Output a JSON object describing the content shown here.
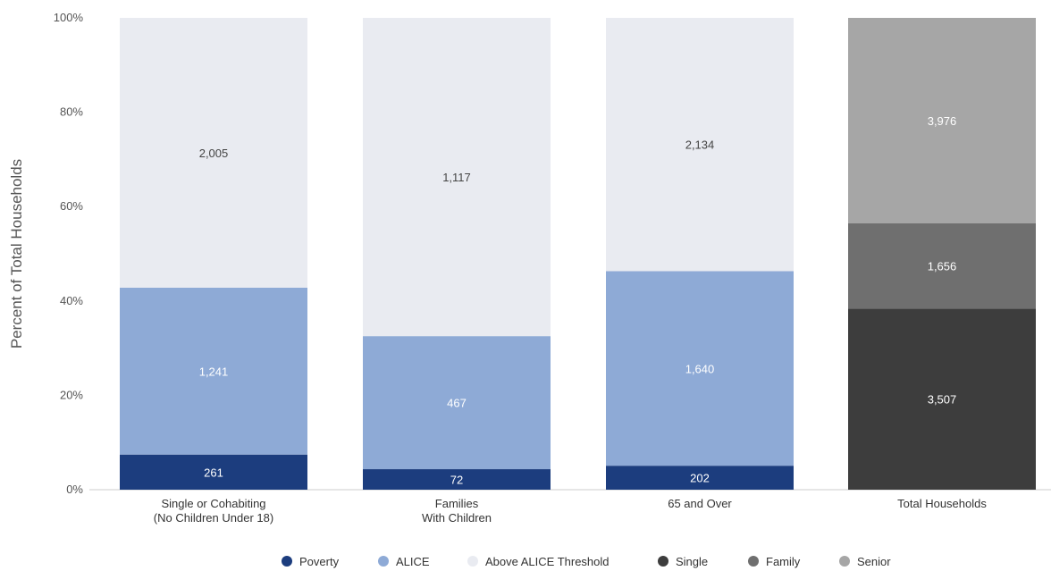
{
  "chart_data": {
    "type": "bar",
    "stacked": true,
    "ylabel": "Percent of Total Households",
    "yticks": [
      "0%",
      "20%",
      "40%",
      "60%",
      "80%",
      "100%"
    ],
    "ylim": [
      0,
      100
    ],
    "grid": false,
    "legend_position": "bottom",
    "categories": [
      [
        "Single or Cohabiting",
        "(No Children Under 18)"
      ],
      [
        "Families",
        "With Children"
      ],
      [
        "65 and Over"
      ],
      [
        "Total Households"
      ]
    ],
    "bars": [
      {
        "segments": [
          {
            "series": "Poverty",
            "value": 261
          },
          {
            "series": "ALICE",
            "value": 1241
          },
          {
            "series": "Above ALICE Threshold",
            "value": 2005
          }
        ]
      },
      {
        "segments": [
          {
            "series": "Poverty",
            "value": 72
          },
          {
            "series": "ALICE",
            "value": 467
          },
          {
            "series": "Above ALICE Threshold",
            "value": 1117
          }
        ]
      },
      {
        "segments": [
          {
            "series": "Poverty",
            "value": 202
          },
          {
            "series": "ALICE",
            "value": 1640
          },
          {
            "series": "Above ALICE Threshold",
            "value": 2134
          }
        ]
      },
      {
        "segments": [
          {
            "series": "Single",
            "value": 3507
          },
          {
            "series": "Family",
            "value": 1656
          },
          {
            "series": "Senior",
            "value": 3976
          }
        ]
      }
    ],
    "series": [
      {
        "name": "Poverty",
        "color": "#1c3d7e",
        "label_color": "#ffffff"
      },
      {
        "name": "ALICE",
        "color": "#8eaad6",
        "label_color": "#ffffff"
      },
      {
        "name": "Above ALICE Threshold",
        "color": "#e9ebf1",
        "label_color": "#444444"
      },
      {
        "name": "Single",
        "color": "#3d3d3d",
        "label_color": "#ffffff"
      },
      {
        "name": "Family",
        "color": "#6f6f6f",
        "label_color": "#ffffff"
      },
      {
        "name": "Senior",
        "color": "#a6a6a6",
        "label_color": "#ffffff"
      }
    ]
  }
}
